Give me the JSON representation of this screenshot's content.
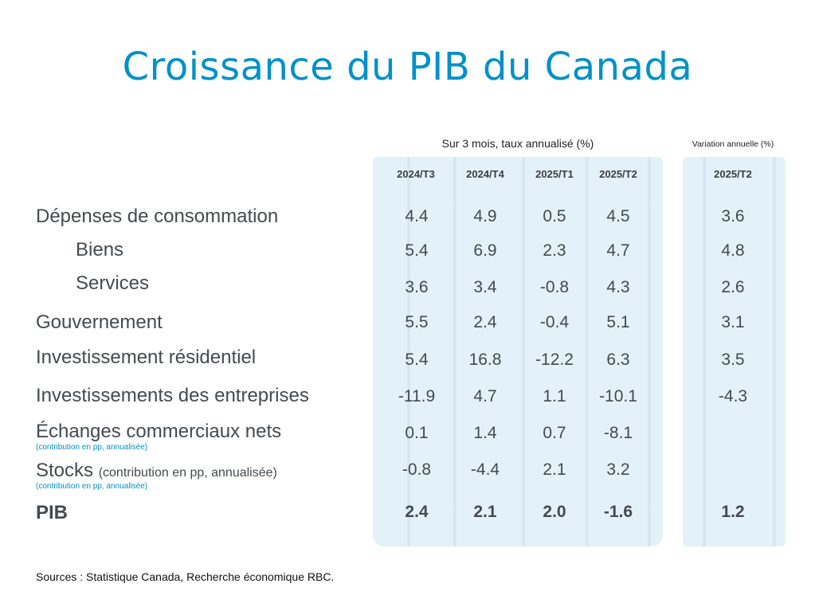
{
  "title": "Croissance du PIB du Canada",
  "group_labels": {
    "quarterly": "Sur 3 mois, taux annualisé (%)",
    "annual": "Variation annuelle (%)"
  },
  "columns": [
    "2024/T3",
    "2024/T4",
    "2025/T1",
    "2025/T2"
  ],
  "annual_column": "2025/T2",
  "rows": [
    {
      "label": "Dépenses de consommation",
      "values": [
        "4.4",
        "4.9",
        "0.5",
        "4.5"
      ],
      "annual": "3.6"
    },
    {
      "label": "Biens",
      "values": [
        "5.4",
        "6.9",
        "2.3",
        "4.7"
      ],
      "annual": "4.8"
    },
    {
      "label": "Services",
      "values": [
        "3.6",
        "3.4",
        "-0.8",
        "4.3"
      ],
      "annual": "2.6"
    },
    {
      "label": "Gouvernement",
      "values": [
        "5.5",
        "2.4",
        "-0.4",
        "5.1"
      ],
      "annual": "3.1"
    },
    {
      "label": "Investissement résidentiel",
      "values": [
        "5.4",
        "16.8",
        "-12.2",
        "6.3"
      ],
      "annual": "3.5"
    },
    {
      "label": "Investissements des entreprises",
      "values": [
        "-11.9",
        "4.7",
        "1.1",
        "-10.1"
      ],
      "annual": "-4.3"
    },
    {
      "label": "Échanges commerciaux nets",
      "note": "(contribution en pp, annualisée)",
      "values": [
        "0.1",
        "1.4",
        "0.7",
        "-8.1"
      ],
      "annual": ""
    },
    {
      "label": "Stocks",
      "inline_note": "(contribution en pp, annualisée)",
      "note": "(contribution en pp, annualisée)",
      "values": [
        "-0.8",
        "-4.4",
        "2.1",
        "3.2"
      ],
      "annual": ""
    },
    {
      "label": "PIB",
      "values": [
        "2.4",
        "2.1",
        "2.0",
        "-1.6"
      ],
      "annual": "1.2"
    }
  ],
  "source": "Sources : Statistique Canada, Recherche économique RBC.",
  "colors": {
    "title": "#0091c8",
    "panel": "#e3f2f8",
    "text": "#444a4f",
    "note": "#0091c8"
  },
  "chart_data": {
    "type": "table",
    "title": "Croissance du PIB du Canada",
    "column_groups": [
      {
        "name": "Sur 3 mois, taux annualisé (%)",
        "columns": [
          "2024/T3",
          "2024/T4",
          "2025/T1",
          "2025/T2"
        ]
      },
      {
        "name": "Variation annuelle (%)",
        "columns": [
          "2025/T2"
        ]
      }
    ],
    "rows": [
      {
        "name": "Dépenses de consommation",
        "quarterly": [
          4.4,
          4.9,
          0.5,
          4.5
        ],
        "annual": 3.6
      },
      {
        "name": "Biens",
        "quarterly": [
          5.4,
          6.9,
          2.3,
          4.7
        ],
        "annual": 4.8
      },
      {
        "name": "Services",
        "quarterly": [
          3.6,
          3.4,
          -0.8,
          4.3
        ],
        "annual": 2.6
      },
      {
        "name": "Gouvernement",
        "quarterly": [
          5.5,
          2.4,
          -0.4,
          5.1
        ],
        "annual": 3.1
      },
      {
        "name": "Investissement résidentiel",
        "quarterly": [
          5.4,
          16.8,
          -12.2,
          6.3
        ],
        "annual": 3.5
      },
      {
        "name": "Investissements des entreprises",
        "quarterly": [
          -11.9,
          4.7,
          1.1,
          -10.1
        ],
        "annual": -4.3
      },
      {
        "name": "Échanges commerciaux nets (contribution en pp, annualisée)",
        "quarterly": [
          0.1,
          1.4,
          0.7,
          -8.1
        ],
        "annual": null
      },
      {
        "name": "Stocks (contribution en pp, annualisée)",
        "quarterly": [
          -0.8,
          -4.4,
          2.1,
          3.2
        ],
        "annual": null
      },
      {
        "name": "PIB",
        "quarterly": [
          2.4,
          2.1,
          2.0,
          -1.6
        ],
        "annual": 1.2
      }
    ],
    "source": "Sources : Statistique Canada, Recherche économique RBC."
  }
}
